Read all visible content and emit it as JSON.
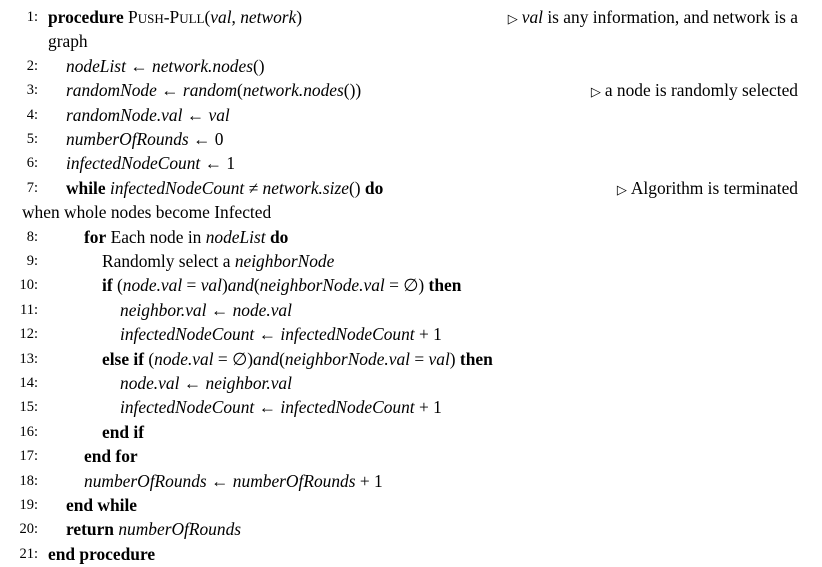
{
  "algorithm": {
    "lines": [
      {
        "n": "1:",
        "indent": 0,
        "segs": [
          {
            "t": "procedure",
            "s": "kw"
          },
          {
            "t": " ",
            "s": "rm"
          },
          {
            "t": "Push-Pull",
            "s": "sc"
          },
          {
            "t": "(",
            "s": "up"
          },
          {
            "t": "val",
            "s": "math"
          },
          {
            "t": ", ",
            "s": "up"
          },
          {
            "t": "network",
            "s": "math"
          },
          {
            "t": ")",
            "s": "up"
          }
        ],
        "comment_parts": [
          {
            "t": "val",
            "s": "math"
          },
          {
            "t": " is any information, and network is a",
            "s": "rm"
          }
        ],
        "continuation": "graph"
      },
      {
        "n": "2:",
        "indent": 1,
        "segs": [
          {
            "t": "nodeList",
            "s": "math"
          },
          {
            "t": " ← ",
            "s": "up"
          },
          {
            "t": "network.nodes",
            "s": "math"
          },
          {
            "t": "()",
            "s": "up"
          }
        ]
      },
      {
        "n": "3:",
        "indent": 1,
        "segs": [
          {
            "t": "randomNode",
            "s": "math"
          },
          {
            "t": " ← ",
            "s": "up"
          },
          {
            "t": "random",
            "s": "math"
          },
          {
            "t": "(",
            "s": "up"
          },
          {
            "t": "network.nodes",
            "s": "math"
          },
          {
            "t": "())",
            "s": "up"
          }
        ],
        "comment": "a node is randomly selected"
      },
      {
        "n": "4:",
        "indent": 1,
        "segs": [
          {
            "t": "randomNode.val",
            "s": "math"
          },
          {
            "t": " ← ",
            "s": "up"
          },
          {
            "t": "val",
            "s": "math"
          }
        ]
      },
      {
        "n": "5:",
        "indent": 1,
        "segs": [
          {
            "t": "numberOfRounds",
            "s": "math"
          },
          {
            "t": " ← 0",
            "s": "up"
          }
        ]
      },
      {
        "n": "6:",
        "indent": 1,
        "segs": [
          {
            "t": "infectedNodeCount",
            "s": "math"
          },
          {
            "t": " ← 1",
            "s": "up"
          }
        ]
      },
      {
        "n": "7:",
        "indent": 1,
        "segs": [
          {
            "t": "while",
            "s": "kw"
          },
          {
            "t": " ",
            "s": "rm"
          },
          {
            "t": "infectedNodeCount",
            "s": "math"
          },
          {
            "t": " ≠ ",
            "s": "up"
          },
          {
            "t": "network.size",
            "s": "math"
          },
          {
            "t": "() ",
            "s": "up"
          },
          {
            "t": "do",
            "s": "kw"
          }
        ],
        "comment": "Algorithm is terminated",
        "continuation": "when whole nodes become Infected"
      },
      {
        "n": "8:",
        "indent": 2,
        "segs": [
          {
            "t": "for",
            "s": "kw"
          },
          {
            "t": " Each node in ",
            "s": "rm"
          },
          {
            "t": "nodeList",
            "s": "math"
          },
          {
            "t": " ",
            "s": "rm"
          },
          {
            "t": "do",
            "s": "kw"
          }
        ]
      },
      {
        "n": "9:",
        "indent": 3,
        "segs": [
          {
            "t": "Randomly select a ",
            "s": "rm"
          },
          {
            "t": "neighborNode",
            "s": "math"
          }
        ]
      },
      {
        "n": "10:",
        "indent": 3,
        "segs": [
          {
            "t": "if",
            "s": "kw"
          },
          {
            "t": " (",
            "s": "up"
          },
          {
            "t": "node.val",
            "s": "math"
          },
          {
            "t": " = ",
            "s": "up"
          },
          {
            "t": "val",
            "s": "math"
          },
          {
            "t": ")",
            "s": "up"
          },
          {
            "t": "and",
            "s": "math"
          },
          {
            "t": "(",
            "s": "up"
          },
          {
            "t": "neighborNode.val",
            "s": "math"
          },
          {
            "t": " = ∅) ",
            "s": "up"
          },
          {
            "t": "then",
            "s": "kw"
          }
        ]
      },
      {
        "n": "11:",
        "indent": 4,
        "segs": [
          {
            "t": "neighbor.val",
            "s": "math"
          },
          {
            "t": " ← ",
            "s": "up"
          },
          {
            "t": "node.val",
            "s": "math"
          }
        ]
      },
      {
        "n": "12:",
        "indent": 4,
        "segs": [
          {
            "t": "infectedNodeCount",
            "s": "math"
          },
          {
            "t": " ← ",
            "s": "up"
          },
          {
            "t": "infectedNodeCount",
            "s": "math"
          },
          {
            "t": " + 1",
            "s": "up"
          }
        ]
      },
      {
        "n": "13:",
        "indent": 3,
        "segs": [
          {
            "t": "else if",
            "s": "kw"
          },
          {
            "t": " (",
            "s": "up"
          },
          {
            "t": "node.val",
            "s": "math"
          },
          {
            "t": " = ∅)",
            "s": "up"
          },
          {
            "t": "and",
            "s": "math"
          },
          {
            "t": "(",
            "s": "up"
          },
          {
            "t": "neighborNode.val",
            "s": "math"
          },
          {
            "t": " = ",
            "s": "up"
          },
          {
            "t": "val",
            "s": "math"
          },
          {
            "t": ") ",
            "s": "up"
          },
          {
            "t": "then",
            "s": "kw"
          }
        ]
      },
      {
        "n": "14:",
        "indent": 4,
        "segs": [
          {
            "t": "node.val",
            "s": "math"
          },
          {
            "t": " ← ",
            "s": "up"
          },
          {
            "t": "neighbor.val",
            "s": "math"
          }
        ]
      },
      {
        "n": "15:",
        "indent": 4,
        "segs": [
          {
            "t": "infectedNodeCount",
            "s": "math"
          },
          {
            "t": " ← ",
            "s": "up"
          },
          {
            "t": "infectedNodeCount",
            "s": "math"
          },
          {
            "t": " + 1",
            "s": "up"
          }
        ]
      },
      {
        "n": "16:",
        "indent": 3,
        "segs": [
          {
            "t": "end if",
            "s": "kw"
          }
        ]
      },
      {
        "n": "17:",
        "indent": 2,
        "segs": [
          {
            "t": "end for",
            "s": "kw"
          }
        ]
      },
      {
        "n": "18:",
        "indent": 2,
        "segs": [
          {
            "t": "numberOfRounds",
            "s": "math"
          },
          {
            "t": " ← ",
            "s": "up"
          },
          {
            "t": "numberOfRounds",
            "s": "math"
          },
          {
            "t": " + 1",
            "s": "up"
          }
        ]
      },
      {
        "n": "19:",
        "indent": 1,
        "segs": [
          {
            "t": "end while",
            "s": "kw"
          }
        ]
      },
      {
        "n": "20:",
        "indent": 1,
        "segs": [
          {
            "t": "return",
            "s": "kw"
          },
          {
            "t": " ",
            "s": "rm"
          },
          {
            "t": "numberOfRounds",
            "s": "math"
          }
        ]
      },
      {
        "n": "21:",
        "indent": 0,
        "segs": [
          {
            "t": "end procedure",
            "s": "kw"
          }
        ]
      }
    ]
  }
}
